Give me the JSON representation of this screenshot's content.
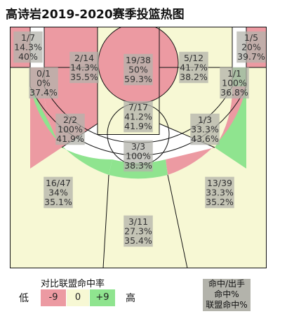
{
  "title": "高诗岩2019-2020赛季投篮热图",
  "colors": {
    "cold": "#ec9aa2",
    "neutral": "#f7f8d4",
    "hot": "#8fe48f",
    "label_bg": "#b3b3ab",
    "line": "#111111"
  },
  "legend": {
    "title": "对比联盟命中率",
    "low": "低",
    "high": "高",
    "scale": [
      "-9",
      "0",
      "+9"
    ],
    "key_lines": [
      "命中/出手",
      "命中%",
      "联盟命中%"
    ]
  },
  "chart_data": {
    "type": "heatmap",
    "title": "高诗岩2019-2020赛季投篮热图",
    "zones": [
      {
        "name": "left-corner-three",
        "made": 1,
        "attempts": 7,
        "fg": "1/7",
        "pct": "14.3%",
        "league": "40%",
        "color": "cold"
      },
      {
        "name": "left-wing-midrange",
        "made": 2,
        "attempts": 14,
        "fg": "2/14",
        "pct": "14.3%",
        "league": "35.5%",
        "color": "cold"
      },
      {
        "name": "restricted-area",
        "made": 19,
        "attempts": 38,
        "fg": "19/38",
        "pct": "50%",
        "league": "59.3%",
        "color": "cold"
      },
      {
        "name": "right-wing-midrange",
        "made": 5,
        "attempts": 12,
        "fg": "5/12",
        "pct": "41.7%",
        "league": "38.2%",
        "color": "neutral"
      },
      {
        "name": "right-corner-three",
        "made": 1,
        "attempts": 5,
        "fg": "1/5",
        "pct": "20%",
        "league": "39.7%",
        "color": "cold"
      },
      {
        "name": "left-baseline-midrange",
        "made": 0,
        "attempts": 1,
        "fg": "0/1",
        "pct": "0%",
        "league": "37.4%",
        "color": "cold"
      },
      {
        "name": "right-baseline-midrange",
        "made": 1,
        "attempts": 1,
        "fg": "1/1",
        "pct": "100%",
        "league": "36.8%",
        "color": "hot"
      },
      {
        "name": "paint-non-ra",
        "made": 7,
        "attempts": 17,
        "fg": "7/17",
        "pct": "41.2%",
        "league": "41.9%",
        "color": "neutral"
      },
      {
        "name": "left-elbow-midrange",
        "made": 2,
        "attempts": 2,
        "fg": "2/2",
        "pct": "100%",
        "league": "41.9%",
        "color": "hot"
      },
      {
        "name": "right-elbow-midrange",
        "made": 1,
        "attempts": 3,
        "fg": "1/3",
        "pct": "33.3%",
        "league": "43.6%",
        "color": "cold"
      },
      {
        "name": "top-key-midrange",
        "made": 3,
        "attempts": 3,
        "fg": "3/3",
        "pct": "100%",
        "league": "38.3%",
        "color": "hot"
      },
      {
        "name": "left-wing-three",
        "made": 16,
        "attempts": 47,
        "fg": "16/47",
        "pct": "34%",
        "league": "35.1%",
        "color": "neutral"
      },
      {
        "name": "top-three",
        "made": 3,
        "attempts": 11,
        "fg": "3/11",
        "pct": "27.3%",
        "league": "35.4%",
        "color": "neutral"
      },
      {
        "name": "right-wing-three",
        "made": 13,
        "attempts": 39,
        "fg": "13/39",
        "pct": "33.3%",
        "league": "35.2%",
        "color": "neutral"
      }
    ]
  }
}
